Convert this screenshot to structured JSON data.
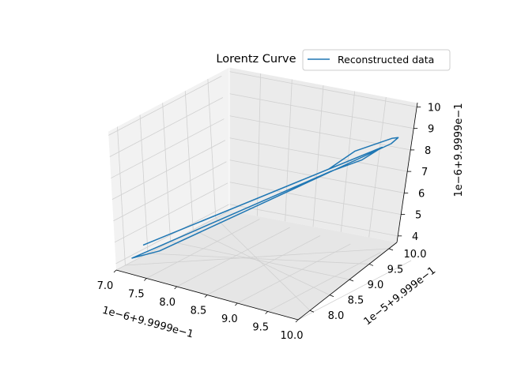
{
  "chart_data": {
    "type": "line",
    "projection": "3d",
    "title": "Lorentz Curve",
    "legend": {
      "entries": [
        "Reconstructed data"
      ],
      "placement": "top-right"
    },
    "grid": true,
    "xlabel": "1e−6+9.9999e−1",
    "ylabel": "1e−5+9.999e−1",
    "zlabel": "1e−6+9.9999e−1",
    "x_ticks": [
      "7.0",
      "7.5",
      "8.0",
      "8.5",
      "9.0",
      "9.5",
      "10.0"
    ],
    "y_ticks": [
      "8.0",
      "8.5",
      "9.0",
      "9.5",
      "10.0"
    ],
    "z_ticks": [
      "4",
      "5",
      "6",
      "7",
      "8",
      "9",
      "10"
    ],
    "xlim": [
      7.0,
      10.0
    ],
    "ylim": [
      7.7,
      10.2
    ],
    "zlim": [
      3.7,
      10.2
    ],
    "series": [
      {
        "name": "Reconstructed data",
        "color": "#1f77b4",
        "x": [
          9.9,
          10.0,
          9.95,
          7.4,
          7.1,
          9.2,
          9.6,
          9.8,
          7.2,
          9.1,
          9.4,
          9.9
        ],
        "y": [
          10.0,
          10.0,
          9.9,
          8.1,
          7.9,
          9.5,
          9.7,
          9.9,
          8.0,
          9.6,
          9.8,
          10.0
        ],
        "z": [
          9.9,
          10.0,
          9.8,
          4.6,
          4.2,
          8.4,
          9.0,
          9.5,
          4.9,
          8.3,
          9.2,
          9.9
        ]
      }
    ]
  }
}
